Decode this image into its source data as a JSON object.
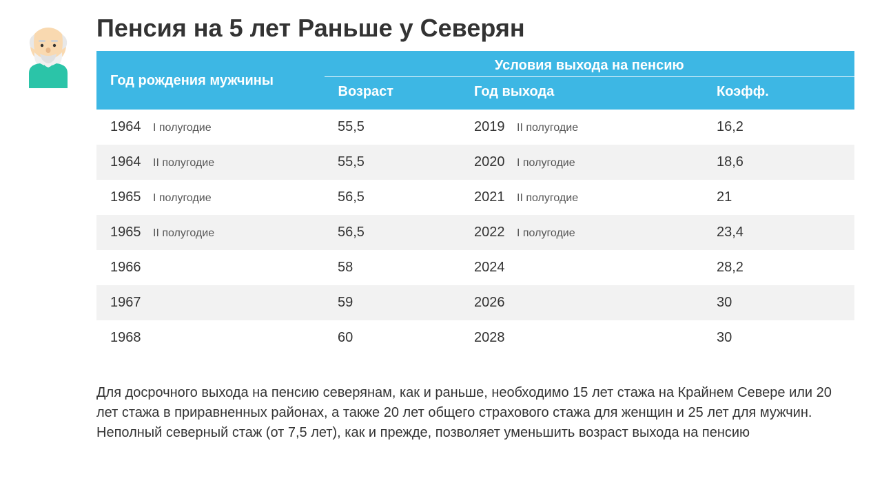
{
  "title": "Пенсия на 5 лет Раньше у Северян",
  "header": {
    "birth_year": "Год рождения мужчины",
    "conditions_super": "Условия выхода на пенсию",
    "age": "Возраст",
    "exit_year": "Год выхода",
    "coef": "Коэфф."
  },
  "rows": [
    {
      "birth_year": "1964",
      "birth_half": "I полугодие",
      "age": "55,5",
      "exit_year": "2019",
      "exit_half": "II полугодие",
      "coef": "16,2"
    },
    {
      "birth_year": "1964",
      "birth_half": "II полугодие",
      "age": "55,5",
      "exit_year": "2020",
      "exit_half": "I полугодие",
      "coef": "18,6"
    },
    {
      "birth_year": "1965",
      "birth_half": "I полугодие",
      "age": "56,5",
      "exit_year": "2021",
      "exit_half": "II полугодие",
      "coef": "21"
    },
    {
      "birth_year": "1965",
      "birth_half": "II полугодие",
      "age": "56,5",
      "exit_year": "2022",
      "exit_half": "I полугодие",
      "coef": "23,4"
    },
    {
      "birth_year": "1966",
      "birth_half": "",
      "age": "58",
      "exit_year": "2024",
      "exit_half": "",
      "coef": "28,2"
    },
    {
      "birth_year": "1967",
      "birth_half": "",
      "age": "59",
      "exit_year": "2026",
      "exit_half": "",
      "coef": "30"
    },
    {
      "birth_year": "1968",
      "birth_half": "",
      "age": "60",
      "exit_year": "2028",
      "exit_half": "",
      "coef": "30"
    }
  ],
  "footer_note": "Для досрочного выхода на пенсию северянам, как и раньше, необходимо 15 лет стажа на Крайнем Севере или 20 лет стажа в приравненных районах, а также 20 лет общего страхового стажа для женщин и 25 лет для мужчин. Неполный северный стаж (от 7,5 лет), как и прежде, позволяет уменьшить возраст выхода на пенсию",
  "colors": {
    "header_bg": "#3db7e4",
    "header_text": "#ffffff",
    "row_alt_bg": "#f2f2f2",
    "text": "#333333",
    "subtext": "#555555"
  }
}
